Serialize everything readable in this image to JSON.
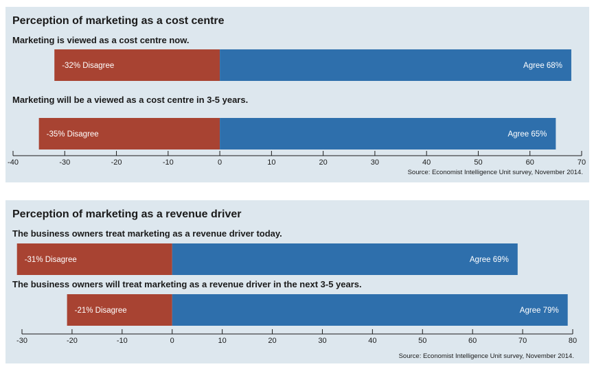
{
  "chart_data": [
    {
      "type": "bar",
      "orientation": "horizontal-diverging",
      "title": "Perception of marketing as a cost centre",
      "xlim": [
        -40,
        70
      ],
      "ticks": [
        -40,
        -30,
        -20,
        -10,
        0,
        10,
        20,
        30,
        40,
        50,
        60,
        70
      ],
      "tick_labels": [
        "-40",
        "-30",
        "-20",
        "-10",
        "0",
        "10",
        "20",
        "30",
        "40",
        "50",
        "60",
        "70"
      ],
      "colors": {
        "disagree": "#a84332",
        "agree": "#2e6fac"
      },
      "rows": [
        {
          "label": "Marketing is viewed as a cost centre now.",
          "disagree": -32,
          "agree": 68,
          "disagree_label": "-32% Disagree",
          "agree_label": "Agree 68%"
        },
        {
          "label": "Marketing will be a viewed as a cost centre in 3-5 years.",
          "disagree": -35,
          "agree": 65,
          "disagree_label": "-35% Disagree",
          "agree_label": "Agree 65%"
        }
      ],
      "source": "Source: Economist Intelligence Unit survey, November 2014."
    },
    {
      "type": "bar",
      "orientation": "horizontal-diverging",
      "title": "Perception of marketing as a revenue driver",
      "xlim": [
        -30,
        80
      ],
      "ticks": [
        -30,
        -20,
        -10,
        0,
        10,
        20,
        30,
        40,
        50,
        60,
        70,
        80
      ],
      "tick_labels": [
        "-30",
        "-20",
        "-10",
        "0",
        "10",
        "20",
        "30",
        "40",
        "50",
        "60",
        "70",
        "80"
      ],
      "colors": {
        "disagree": "#a84332",
        "agree": "#2e6fac"
      },
      "rows": [
        {
          "label": "The business owners treat marketing as a revenue driver today.",
          "disagree": -31,
          "agree": 69,
          "disagree_label": "-31% Disagree",
          "agree_label": "Agree 69%"
        },
        {
          "label": "The business owners will treat marketing as a revenue driver in the next 3-5 years.",
          "disagree": -21,
          "agree": 79,
          "disagree_label": "-21% Disagree",
          "agree_label": "Agree 79%"
        }
      ],
      "source": "Source: Economist Intelligence Unit survey, November 2014."
    }
  ]
}
